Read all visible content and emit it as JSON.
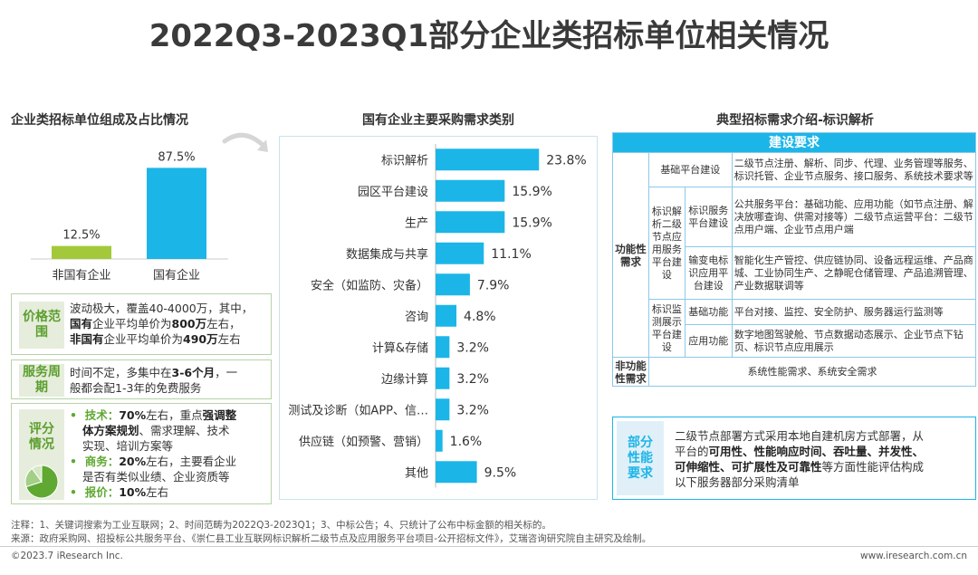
{
  "page": {
    "title": "2022Q3-2023Q1部分企业类招标单位相关情况"
  },
  "left": {
    "section_title": "企业类招标单位组成及占比情况",
    "bars": [
      {
        "label": "非国有企业",
        "value": 12.5,
        "value_label": "12.5%",
        "color": "#a3c93a"
      },
      {
        "label": "国有企业",
        "value": 87.5,
        "value_label": "87.5%",
        "color": "#1cb5e8"
      }
    ],
    "price": {
      "tag": "价格范围",
      "line1": "波动极大，覆盖40-4000万，其中，",
      "line2_a": "国有",
      "line2_b": "企业平均单价为",
      "line2_c": "800万",
      "line2_d": "左右，",
      "line3_a": "非国有",
      "line3_b": "企业平均单价为",
      "line3_c": "490万",
      "line3_d": "左右"
    },
    "cycle": {
      "tag": "服务周期",
      "line1_a": "时间不定，多集中在",
      "line1_b": "3-6个月",
      "line1_c": "，一",
      "line2": "般都会配1-3年的免费服务"
    },
    "score": {
      "tag": "评分情况",
      "items": [
        {
          "k": "技术：",
          "a": "70%",
          "b": "左右，重点",
          "c": "强调整",
          "d": "体方案规划",
          "e": "、需求理解、技术",
          "f": "实现、培训方案等"
        },
        {
          "k": "商务：",
          "a": "20%",
          "b": "左右，主要看企业",
          "f": "是否有类似业绩、企业资质等"
        },
        {
          "k": "报价：",
          "a": "10%",
          "b": "左右"
        }
      ],
      "pie": [
        70,
        20,
        10
      ]
    }
  },
  "chart_data": {
    "type": "bar",
    "title": "国有企业主要采购需求类别",
    "orientation": "horizontal",
    "categories": [
      "标识解析",
      "园区平台建设",
      "生产",
      "数据集成与共享",
      "安全（如监防、灾备）",
      "咨询",
      "计算&存储",
      "边缘计算",
      "测试及诊断（如APP、信…",
      "供应链（如预警、营销）",
      "其他"
    ],
    "values": [
      23.8,
      15.9,
      15.9,
      11.1,
      7.9,
      4.8,
      3.2,
      3.2,
      3.2,
      1.6,
      9.5
    ],
    "value_labels": [
      "23.8%",
      "15.9%",
      "15.9%",
      "11.1%",
      "7.9%",
      "4.8%",
      "3.2%",
      "3.2%",
      "3.2%",
      "1.6%",
      "9.5%"
    ],
    "xlim": [
      0,
      25
    ],
    "unit": "%",
    "color": "#1cb5e8"
  },
  "right": {
    "section_title": "典型招标需求介绍-标识解析",
    "header": "建设要求",
    "func_cat": "功能性需求",
    "nonfunc_cat": "非功能性需求",
    "rows": {
      "r1_c2": "基础平台建设",
      "r1_c3": "二级节点注册、解析、同步、代理、业务管理等服务、标识托管、企业节点服务、接口服务、系统技术要求等",
      "group_a": "标识解析二级节点应用服务平台建设",
      "r2_c2": "标识服务平台建设",
      "r2_c3": "公共服务平台：基础功能、应用功能（如节点注册、解决放哪查询、供需对接等）二级节点运营平台：二级节点用户端、企业节点用户端",
      "r3_c2": "输变电标识应用平台建设",
      "r3_c3": "智能化生产管控、供应链协同、设备远程运维、产品商城、工业协同生产、之静昵仓储管理、产品追溯管理、产业数据联调等",
      "group_b": "标识监测展示平台建设",
      "r4_c2": "基础功能",
      "r4_c3": "平台对接、监控、安全防护、服务器运行监测等",
      "r5_c2": "应用功能",
      "r5_c3": "数字地图驾驶舱、节点数据动态展示、企业节点下钻页、标识节点应用展示",
      "nonfunc_text": "系统性能需求、系统安全需求"
    },
    "part": {
      "tag": "部分性能要求",
      "t1": "二级节点部署方式采用本地自建机房方式部署，从",
      "t2_a": "平台的",
      "t2_b": "可用性、性能响应时间、吞吐量、并发性、",
      "t3_a": "可伸缩性、可扩展性及可靠性",
      "t3_b": "等方面性能评估构成",
      "t4": "以下服务器部分采购清单"
    }
  },
  "footer": {
    "note": "注释：1、关键词搜索为工业互联网；2、时间范畴为2022Q3-2023Q1；3、中标公告；4、只统计了公布中标金额的相关标的。",
    "source": "来源：政府采购网、招投标公共服务平台、《崇仁县工业互联网标识解析二级节点及应用服务平台项目-公开招标文件》，艾瑞咨询研究院自主研究及绘制。",
    "copyright": "©2023.7 iResearch Inc.",
    "url": "www.iresearch.com.cn"
  }
}
